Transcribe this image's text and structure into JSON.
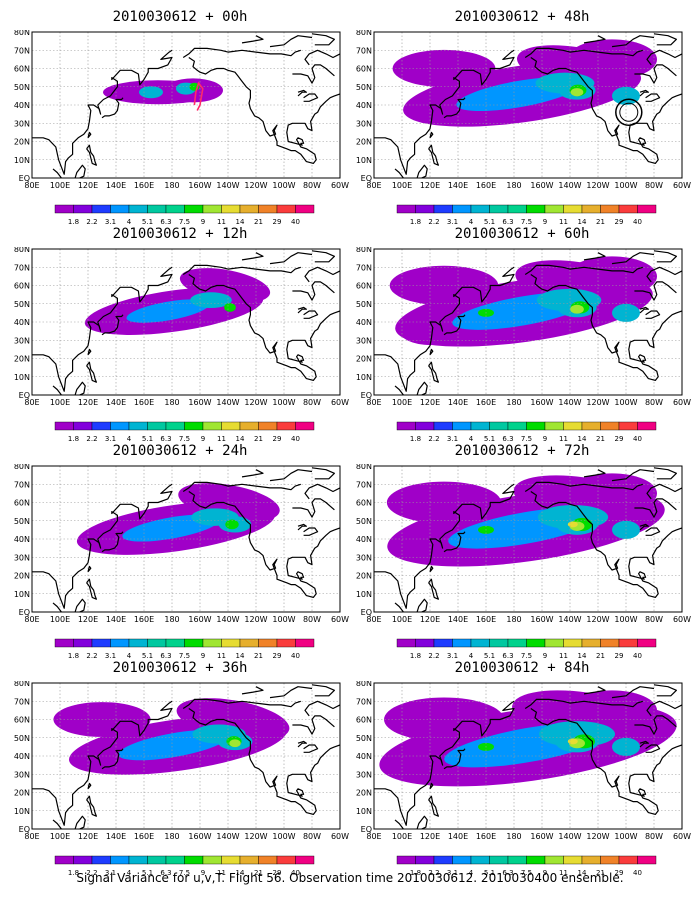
{
  "caption": "Signal Variance for u,v,T. Flight 56. Observation time 2010030612. 2010030400 ensemble.",
  "lat_labels": [
    "80N",
    "70N",
    "60N",
    "50N",
    "40N",
    "30N",
    "20N",
    "10N",
    "EQ"
  ],
  "lon_labels": [
    "80E",
    "100E",
    "120E",
    "140E",
    "160E",
    "180",
    "160W",
    "140W",
    "120W",
    "100W",
    "80W",
    "60W"
  ],
  "colorbar": {
    "labels": [
      "1.8",
      "2.2",
      "3.1",
      "4",
      "5.1",
      "6.3",
      "7.5",
      "9",
      "11",
      "14",
      "21",
      "29",
      "40"
    ],
    "colors": [
      "#a000c8",
      "#8200dc",
      "#1e3cff",
      "#0096ff",
      "#00b4d2",
      "#00c8a0",
      "#00d28c",
      "#00dc00",
      "#a0e632",
      "#e6dc32",
      "#e6af2d",
      "#f08228",
      "#fa3c3c",
      "#f00082"
    ]
  },
  "panels": [
    {
      "title": "2010030612 + 00h",
      "intensity": 0
    },
    {
      "title": "2010030612 + 48h",
      "intensity": 4
    },
    {
      "title": "2010030612 + 12h",
      "intensity": 1
    },
    {
      "title": "2010030612 + 60h",
      "intensity": 5
    },
    {
      "title": "2010030612 + 24h",
      "intensity": 2
    },
    {
      "title": "2010030612 + 72h",
      "intensity": 6
    },
    {
      "title": "2010030612 + 36h",
      "intensity": 3
    },
    {
      "title": "2010030612 + 84h",
      "intensity": 7
    }
  ]
}
